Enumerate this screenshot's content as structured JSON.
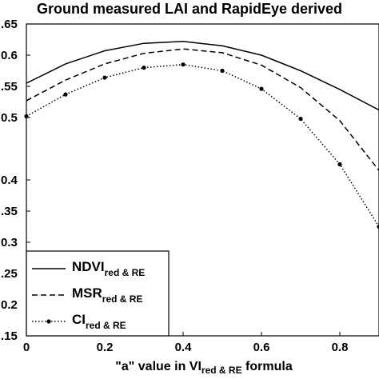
{
  "chart_data": {
    "type": "line",
    "title": "Ground measured LAI and RapidEye derived",
    "xlabel_parts": [
      "\"a\" value in VI",
      "red & RE",
      " formula"
    ],
    "ylabel": "",
    "xlim": [
      0,
      0.9
    ],
    "ylim": [
      0.15,
      0.65
    ],
    "x_ticks": [
      "0",
      "0.2",
      "0.4",
      "0.6",
      "0.8"
    ],
    "x_tick_values": [
      0,
      0.2,
      0.4,
      0.6,
      0.8
    ],
    "y_ticks": [
      ".65",
      "0.6",
      ".55",
      "0.5",
      "0.4",
      ".35",
      "0.3",
      ".25",
      "0.2",
      ".15"
    ],
    "y_tick_values": [
      0.65,
      0.6,
      0.55,
      0.5,
      0.4,
      0.35,
      0.3,
      0.25,
      0.2,
      0.15
    ],
    "grid": false,
    "legend_position": "bottom-left",
    "x": [
      0,
      0.1,
      0.2,
      0.3,
      0.4,
      0.5,
      0.6,
      0.7,
      0.8,
      0.9
    ],
    "series": [
      {
        "name": "NDVI",
        "name_sub": "red & RE",
        "style": "solid",
        "markers": false,
        "values": [
          0.555,
          0.586,
          0.607,
          0.619,
          0.622,
          0.615,
          0.6,
          0.575,
          0.545,
          0.512
        ]
      },
      {
        "name": "MSR",
        "name_sub": "red & RE",
        "style": "dashed",
        "markers": false,
        "values": [
          0.527,
          0.56,
          0.586,
          0.603,
          0.61,
          0.604,
          0.584,
          0.548,
          0.495,
          0.415
        ]
      },
      {
        "name": "CI",
        "name_sub": "red & RE",
        "style": "dotted",
        "markers": true,
        "values": [
          0.502,
          0.537,
          0.564,
          0.58,
          0.585,
          0.575,
          0.546,
          0.498,
          0.425,
          0.325
        ]
      }
    ]
  }
}
